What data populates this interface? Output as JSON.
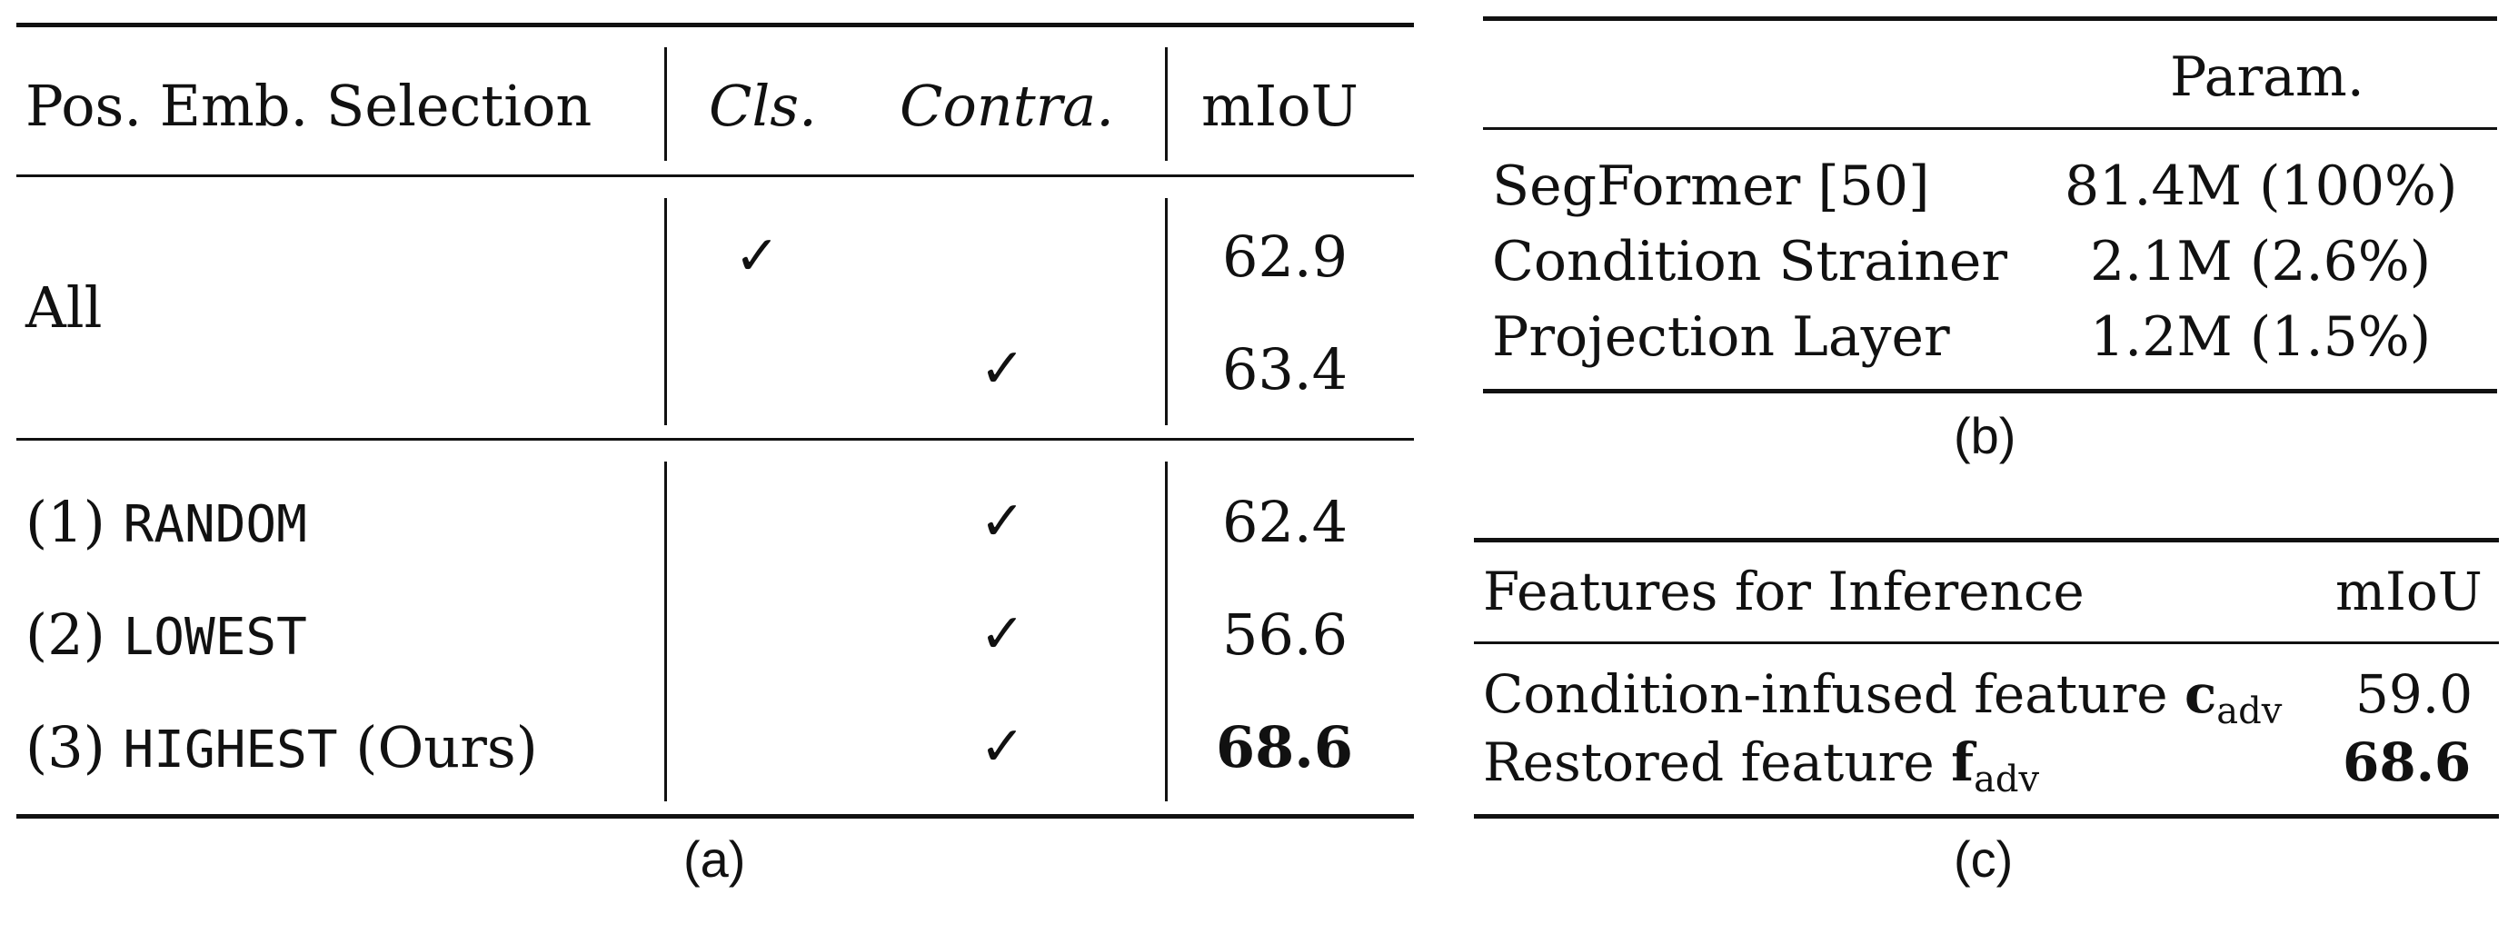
{
  "table_a": {
    "headers": [
      "Pos. Emb. Selection",
      "Cls.",
      "Contra.",
      "mIoU"
    ],
    "group1_label": "All",
    "rows_all": [
      {
        "cls": "✓",
        "contra": "",
        "miou": "62.9"
      },
      {
        "cls": "",
        "contra": "✓",
        "miou": "63.4"
      }
    ],
    "rows_methods": [
      {
        "prefix": "(1)",
        "method": "RANDOM",
        "suffix": "",
        "cls": "",
        "contra": "✓",
        "miou": "62.4"
      },
      {
        "prefix": "(2)",
        "method": "LOWEST",
        "suffix": "",
        "cls": "",
        "contra": "✓",
        "miou": "56.6"
      },
      {
        "prefix": "(3)",
        "method": "HIGHEST",
        "suffix": "(Ours)",
        "cls": "",
        "contra": "✓",
        "miou": "68.6"
      }
    ],
    "caption": "(a)"
  },
  "table_b": {
    "header": "Param.",
    "rows": [
      {
        "name": "SegFormer [50]",
        "value": "81.4M (100%)"
      },
      {
        "name": "Condition Strainer",
        "value": "2.1M (2.6%)"
      },
      {
        "name": "Projection Layer",
        "value": "1.2M (1.5%)"
      }
    ],
    "caption": "(b)"
  },
  "table_c": {
    "headers": [
      "Features for Inference",
      "mIoU"
    ],
    "rows": [
      {
        "name": "Condition-infused feature",
        "symbol": "c",
        "subscript": "adv",
        "miou": "59.0"
      },
      {
        "name": "Restored feature",
        "symbol": "f",
        "subscript": "adv",
        "miou": "68.6"
      }
    ],
    "caption": "(c)"
  }
}
